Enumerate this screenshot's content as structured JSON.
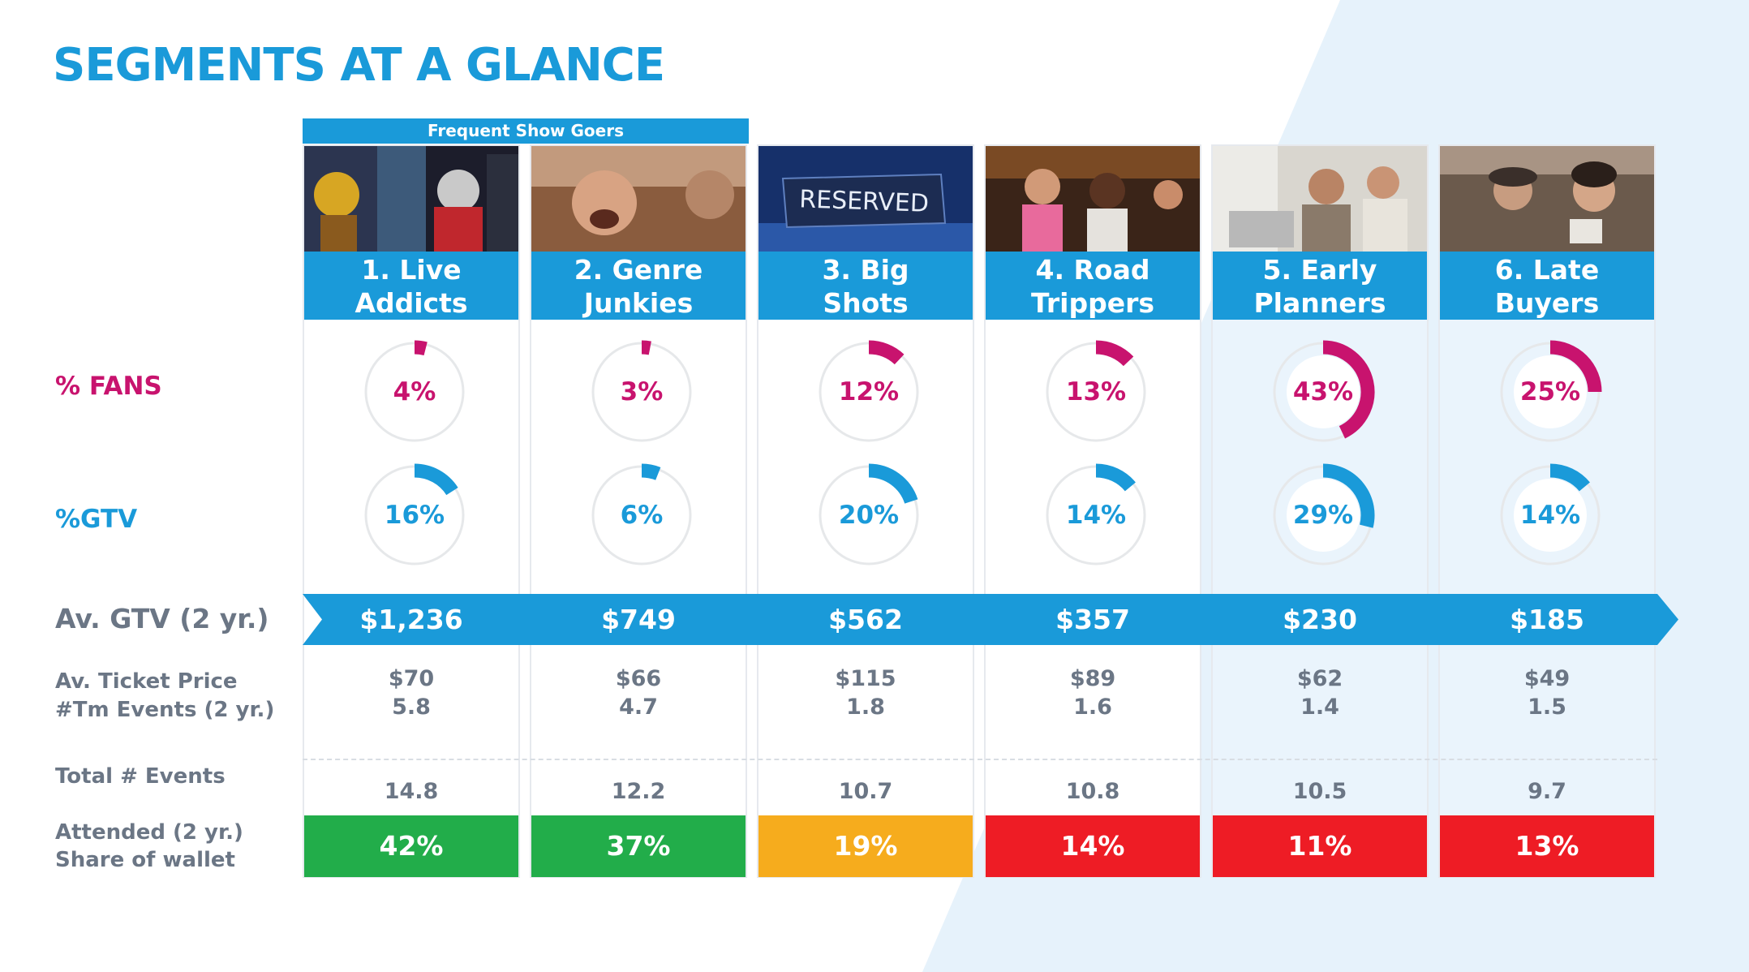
{
  "title": "SEGMENTS AT A GLANCE",
  "group_banner": "Frequent Show Goers",
  "row_labels": {
    "fans": "% FANS",
    "gtv": "%GTV",
    "avg_gtv": "Av. GTV (2 yr.)",
    "ticket_price": "Av. Ticket Price",
    "tm_events": "#Tm Events (2 yr.)",
    "total_events": "Total # Events",
    "attended": "Attended (2 yr.)",
    "share_wallet": "Share of wallet"
  },
  "colors": {
    "brand_blue": "#1a9ad9",
    "fans_magenta": "#c8136e",
    "track": "#e6e8ea",
    "share_green": "#22ad4a",
    "share_orange": "#f6ac1d",
    "share_red": "#ee1c25",
    "text_gray": "#6b7685"
  },
  "photo_captions": {
    "reserved_sign": "RESERVED"
  },
  "segments": [
    {
      "line1": "1. Live",
      "line2": "Addicts",
      "fans": "4%",
      "gtv": "16%",
      "avg_gtv": "$1,236",
      "ticket_price": "$70",
      "tm_events": "5.8",
      "total_events": "14.8",
      "share": "42%",
      "share_color": "#22ad4a"
    },
    {
      "line1": "2. Genre",
      "line2": "Junkies",
      "fans": "3%",
      "gtv": "6%",
      "avg_gtv": "$749",
      "ticket_price": "$66",
      "tm_events": "4.7",
      "total_events": "12.2",
      "share": "37%",
      "share_color": "#22ad4a"
    },
    {
      "line1": "3. Big",
      "line2": "Shots",
      "fans": "12%",
      "gtv": "20%",
      "avg_gtv": "$562",
      "ticket_price": "$115",
      "tm_events": "1.8",
      "total_events": "10.7",
      "share": "19%",
      "share_color": "#f6ac1d"
    },
    {
      "line1": "4. Road",
      "line2": "Trippers",
      "fans": "13%",
      "gtv": "14%",
      "avg_gtv": "$357",
      "ticket_price": "$89",
      "tm_events": "1.6",
      "total_events": "10.8",
      "share": "14%",
      "share_color": "#ee1c25"
    },
    {
      "line1": "5. Early",
      "line2": "Planners",
      "fans": "43%",
      "gtv": "29%",
      "avg_gtv": "$230",
      "ticket_price": "$62",
      "tm_events": "1.4",
      "total_events": "10.5",
      "share": "11%",
      "share_color": "#ee1c25"
    },
    {
      "line1": "6. Late",
      "line2": "Buyers",
      "fans": "25%",
      "gtv": "14%",
      "avg_gtv": "$185",
      "ticket_price": "$49",
      "tm_events": "1.5",
      "total_events": "9.7",
      "share": "13%",
      "share_color": "#ee1c25"
    }
  ],
  "chart_data": [
    {
      "type": "pie",
      "categories": [
        "1. Live Addicts",
        "2. Genre Junkies",
        "3. Big Shots",
        "4. Road Trippers",
        "5. Early Planners",
        "6. Late Buyers"
      ],
      "series": [
        {
          "name": "% FANS",
          "values": [
            4,
            3,
            12,
            13,
            43,
            25
          ]
        }
      ]
    },
    {
      "type": "pie",
      "categories": [
        "1. Live Addicts",
        "2. Genre Junkies",
        "3. Big Shots",
        "4. Road Trippers",
        "5. Early Planners",
        "6. Late Buyers"
      ],
      "series": [
        {
          "name": "%GTV",
          "values": [
            16,
            6,
            20,
            14,
            29,
            14
          ]
        }
      ]
    },
    {
      "type": "table",
      "categories": [
        "1. Live Addicts",
        "2. Genre Junkies",
        "3. Big Shots",
        "4. Road Trippers",
        "5. Early Planners",
        "6. Late Buyers"
      ],
      "series": [
        {
          "name": "Av. GTV (2 yr.)",
          "values": [
            1236,
            749,
            562,
            357,
            230,
            185
          ]
        },
        {
          "name": "Av. Ticket Price",
          "values": [
            70,
            66,
            115,
            89,
            62,
            49
          ]
        },
        {
          "name": "#Tm Events (2 yr.)",
          "values": [
            5.8,
            4.7,
            1.8,
            1.6,
            1.4,
            1.5
          ]
        },
        {
          "name": "Total # Events",
          "values": [
            14.8,
            12.2,
            10.7,
            10.8,
            10.5,
            9.7
          ]
        },
        {
          "name": "Share of wallet",
          "values": [
            42,
            37,
            19,
            14,
            11,
            13
          ]
        }
      ]
    }
  ]
}
